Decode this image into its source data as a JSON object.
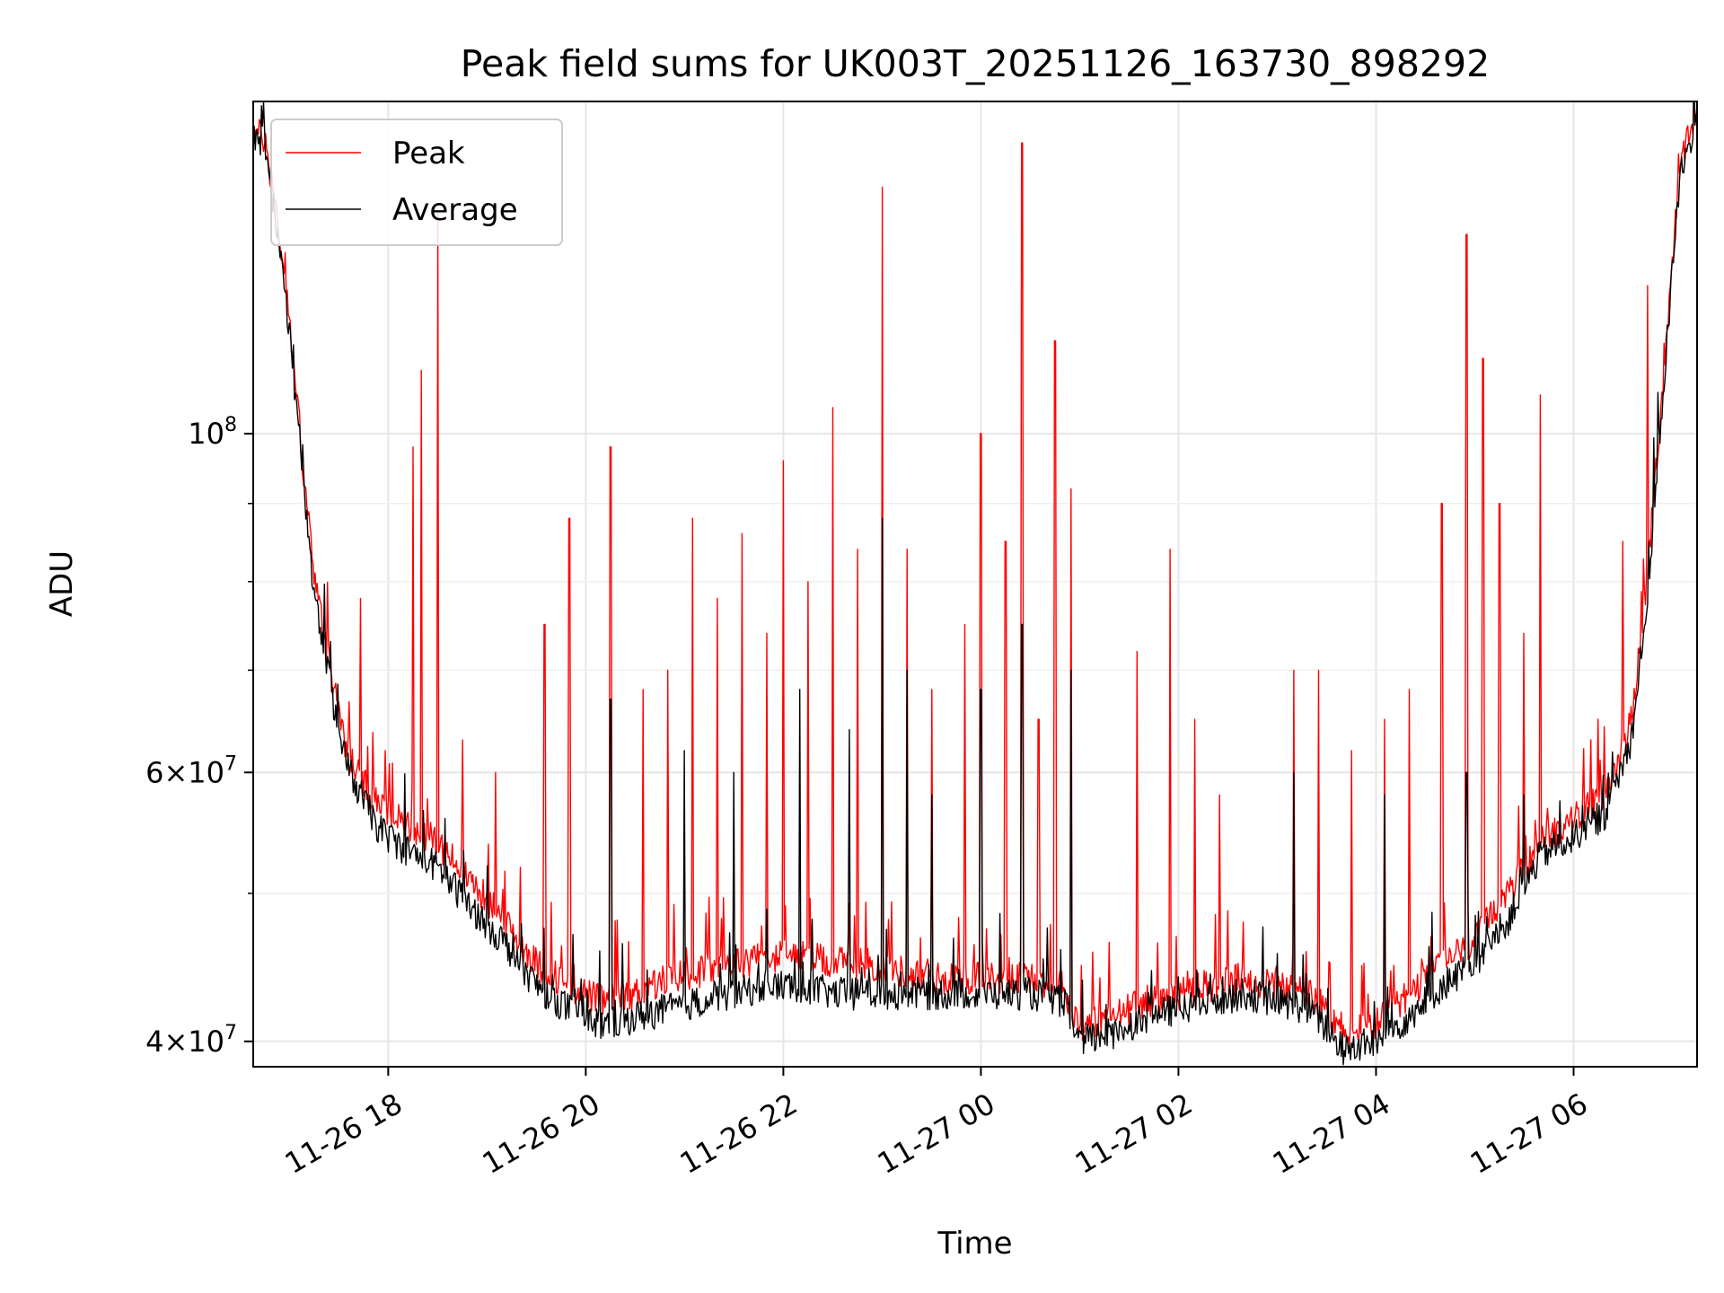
{
  "chart_data": {
    "type": "line",
    "title": "Peak field sums for UK003T_20251126_163730_898292",
    "xlabel": "Time",
    "ylabel": "ADU",
    "y_scale": "log",
    "ylim": [
      38500000,
      165000000
    ],
    "xlim": [
      "2025-11-26 16:38",
      "2025-11-27 07:15"
    ],
    "grid": true,
    "legend_position": "upper-left",
    "x_ticks": [
      {
        "label": "11-26 18",
        "value": "2025-11-26 18:00"
      },
      {
        "label": "11-26 20",
        "value": "2025-11-26 20:00"
      },
      {
        "label": "11-26 22",
        "value": "2025-11-26 22:00"
      },
      {
        "label": "11-27 00",
        "value": "2025-11-27 00:00"
      },
      {
        "label": "11-27 02",
        "value": "2025-11-27 02:00"
      },
      {
        "label": "11-27 04",
        "value": "2025-11-27 04:00"
      },
      {
        "label": "11-27 06",
        "value": "2025-11-27 06:00"
      }
    ],
    "y_ticks": [
      {
        "base": "4",
        "exp": "7",
        "value": 40000000
      },
      {
        "base": "6",
        "exp": "7",
        "value": 60000000
      },
      {
        "base": "10",
        "exp": "8",
        "value": 100000000
      }
    ],
    "series": [
      {
        "name": "Peak",
        "color": "#ff0000",
        "points": [
          [
            "2025-11-26 16:38",
            158000000
          ],
          [
            "2025-11-26 16:45",
            156000000
          ],
          [
            "2025-11-26 16:52",
            140000000
          ],
          [
            "2025-11-26 17:00",
            118000000
          ],
          [
            "2025-11-26 17:08",
            96000000
          ],
          [
            "2025-11-26 17:15",
            80000000
          ],
          [
            "2025-11-26 17:25",
            70000000
          ],
          [
            "2025-11-26 17:35",
            62000000
          ],
          [
            "2025-11-26 17:45",
            59000000
          ],
          [
            "2025-11-26 17:55",
            57000000
          ],
          [
            "2025-11-26 18:10",
            55500000
          ],
          [
            "2025-11-26 18:30",
            54000000
          ],
          [
            "2025-11-26 18:50",
            51000000
          ],
          [
            "2025-11-26 19:10",
            48000000
          ],
          [
            "2025-11-26 19:30",
            45000000
          ],
          [
            "2025-11-26 19:50",
            43500000
          ],
          [
            "2025-11-26 20:10",
            42500000
          ],
          [
            "2025-11-26 20:30",
            43000000
          ],
          [
            "2025-11-26 20:50",
            44000000
          ],
          [
            "2025-11-26 21:10",
            44500000
          ],
          [
            "2025-11-26 21:30",
            45000000
          ],
          [
            "2025-11-26 21:50",
            45500000
          ],
          [
            "2025-11-26 22:10",
            45500000
          ],
          [
            "2025-11-26 22:30",
            45000000
          ],
          [
            "2025-11-26 22:50",
            45000000
          ],
          [
            "2025-11-26 23:10",
            44500000
          ],
          [
            "2025-11-26 23:30",
            44000000
          ],
          [
            "2025-11-26 23:50",
            44000000
          ],
          [
            "2025-11-27 00:10",
            44000000
          ],
          [
            "2025-11-27 00:30",
            44000000
          ],
          [
            "2025-11-27 00:50",
            43500000
          ],
          [
            "2025-11-27 01:00",
            41000000
          ],
          [
            "2025-11-27 01:20",
            41500000
          ],
          [
            "2025-11-27 01:40",
            42500000
          ],
          [
            "2025-11-27 02:00",
            43000000
          ],
          [
            "2025-11-27 02:20",
            43500000
          ],
          [
            "2025-11-27 02:40",
            44000000
          ],
          [
            "2025-11-27 03:00",
            43500000
          ],
          [
            "2025-11-27 03:20",
            43000000
          ],
          [
            "2025-11-27 03:40",
            40500000
          ],
          [
            "2025-11-27 04:00",
            41000000
          ],
          [
            "2025-11-27 04:20",
            43000000
          ],
          [
            "2025-11-27 04:40",
            45000000
          ],
          [
            "2025-11-27 05:00",
            46500000
          ],
          [
            "2025-11-27 05:20",
            50000000
          ],
          [
            "2025-11-27 05:40",
            54000000
          ],
          [
            "2025-11-27 06:00",
            56000000
          ],
          [
            "2025-11-27 06:20",
            58000000
          ],
          [
            "2025-11-27 06:35",
            65000000
          ],
          [
            "2025-11-27 06:45",
            80000000
          ],
          [
            "2025-11-27 06:55",
            110000000
          ],
          [
            "2025-11-27 07:05",
            150000000
          ],
          [
            "2025-11-27 07:15",
            162000000
          ]
        ],
        "spikes": [
          [
            "2025-11-26 17:23",
            72000000
          ],
          [
            "2025-11-26 17:32",
            65000000
          ],
          [
            "2025-11-26 17:43",
            78000000
          ],
          [
            "2025-11-26 17:58",
            62000000
          ],
          [
            "2025-11-26 18:15",
            98000000
          ],
          [
            "2025-11-26 18:20",
            110000000
          ],
          [
            "2025-11-26 18:30",
            140000000
          ],
          [
            "2025-11-26 18:45",
            63000000
          ],
          [
            "2025-11-26 19:05",
            60000000
          ],
          [
            "2025-11-26 19:20",
            52000000
          ],
          [
            "2025-11-26 19:35",
            75000000
          ],
          [
            "2025-11-26 19:50",
            88000000
          ],
          [
            "2025-11-26 20:15",
            98000000
          ],
          [
            "2025-11-26 20:35",
            68000000
          ],
          [
            "2025-11-26 20:50",
            70000000
          ],
          [
            "2025-11-26 21:05",
            88000000
          ],
          [
            "2025-11-26 21:20",
            78000000
          ],
          [
            "2025-11-26 21:35",
            86000000
          ],
          [
            "2025-11-26 21:50",
            74000000
          ],
          [
            "2025-11-26 22:00",
            96000000
          ],
          [
            "2025-11-26 22:15",
            80000000
          ],
          [
            "2025-11-26 22:30",
            104000000
          ],
          [
            "2025-11-26 22:45",
            84000000
          ],
          [
            "2025-11-26 23:00",
            145000000
          ],
          [
            "2025-11-26 23:15",
            84000000
          ],
          [
            "2025-11-26 23:30",
            68000000
          ],
          [
            "2025-11-26 23:50",
            75000000
          ],
          [
            "2025-11-27 00:00",
            100000000
          ],
          [
            "2025-11-27 00:15",
            85000000
          ],
          [
            "2025-11-27 00:25",
            155000000
          ],
          [
            "2025-11-27 00:35",
            65000000
          ],
          [
            "2025-11-27 00:45",
            115000000
          ],
          [
            "2025-11-27 00:55",
            92000000
          ],
          [
            "2025-11-27 01:35",
            72000000
          ],
          [
            "2025-11-27 01:55",
            84000000
          ],
          [
            "2025-11-27 02:10",
            65000000
          ],
          [
            "2025-11-27 02:25",
            58000000
          ],
          [
            "2025-11-27 03:10",
            70000000
          ],
          [
            "2025-11-27 03:25",
            70000000
          ],
          [
            "2025-11-27 03:45",
            62000000
          ],
          [
            "2025-11-27 04:05",
            65000000
          ],
          [
            "2025-11-27 04:20",
            68000000
          ],
          [
            "2025-11-27 04:40",
            90000000
          ],
          [
            "2025-11-27 04:55",
            135000000
          ],
          [
            "2025-11-27 05:05",
            112000000
          ],
          [
            "2025-11-27 05:15",
            90000000
          ],
          [
            "2025-11-27 05:30",
            74000000
          ],
          [
            "2025-11-27 05:40",
            106000000
          ],
          [
            "2025-11-27 06:15",
            65000000
          ],
          [
            "2025-11-27 06:30",
            85000000
          ],
          [
            "2025-11-27 06:45",
            125000000
          ]
        ]
      },
      {
        "name": "Average",
        "color": "#000000",
        "points": [
          [
            "2025-11-26 16:38",
            157000000
          ],
          [
            "2025-11-26 16:45",
            155000000
          ],
          [
            "2025-11-26 16:52",
            138000000
          ],
          [
            "2025-11-26 17:00",
            116000000
          ],
          [
            "2025-11-26 17:08",
            94000000
          ],
          [
            "2025-11-26 17:15",
            78000000
          ],
          [
            "2025-11-26 17:25",
            68000000
          ],
          [
            "2025-11-26 17:35",
            60500000
          ],
          [
            "2025-11-26 17:45",
            57500000
          ],
          [
            "2025-11-26 17:55",
            55000000
          ],
          [
            "2025-11-26 18:10",
            53500000
          ],
          [
            "2025-11-26 18:30",
            52000000
          ],
          [
            "2025-11-26 18:50",
            49000000
          ],
          [
            "2025-11-26 19:10",
            46500000
          ],
          [
            "2025-11-26 19:30",
            43500000
          ],
          [
            "2025-11-26 19:50",
            42000000
          ],
          [
            "2025-11-26 20:10",
            41000000
          ],
          [
            "2025-11-26 20:30",
            41500000
          ],
          [
            "2025-11-26 20:50",
            42000000
          ],
          [
            "2025-11-26 21:10",
            42500000
          ],
          [
            "2025-11-26 21:30",
            43000000
          ],
          [
            "2025-11-26 21:50",
            43500000
          ],
          [
            "2025-11-26 22:10",
            43500000
          ],
          [
            "2025-11-26 22:30",
            43000000
          ],
          [
            "2025-11-26 22:50",
            43000000
          ],
          [
            "2025-11-26 23:10",
            43000000
          ],
          [
            "2025-11-26 23:30",
            43000000
          ],
          [
            "2025-11-26 23:50",
            43000000
          ],
          [
            "2025-11-27 00:10",
            43000000
          ],
          [
            "2025-11-27 00:30",
            43000000
          ],
          [
            "2025-11-27 00:50",
            42500000
          ],
          [
            "2025-11-27 01:00",
            40000000
          ],
          [
            "2025-11-27 01:20",
            40500000
          ],
          [
            "2025-11-27 01:40",
            41500000
          ],
          [
            "2025-11-27 02:00",
            42000000
          ],
          [
            "2025-11-27 02:20",
            42500000
          ],
          [
            "2025-11-27 02:40",
            43000000
          ],
          [
            "2025-11-27 03:00",
            42500000
          ],
          [
            "2025-11-27 03:20",
            42000000
          ],
          [
            "2025-11-27 03:40",
            39500000
          ],
          [
            "2025-11-27 04:00",
            40000000
          ],
          [
            "2025-11-27 04:20",
            41500000
          ],
          [
            "2025-11-27 04:40",
            43500000
          ],
          [
            "2025-11-27 05:00",
            45000000
          ],
          [
            "2025-11-27 05:20",
            48000000
          ],
          [
            "2025-11-27 05:40",
            53000000
          ],
          [
            "2025-11-27 06:00",
            54500000
          ],
          [
            "2025-11-27 06:20",
            56500000
          ],
          [
            "2025-11-27 06:35",
            63000000
          ],
          [
            "2025-11-27 06:45",
            78000000
          ],
          [
            "2025-11-27 06:55",
            108000000
          ],
          [
            "2025-11-27 07:05",
            148000000
          ],
          [
            "2025-11-27 07:15",
            160000000
          ]
        ],
        "spikes": [
          [
            "2025-11-26 20:15",
            67000000
          ],
          [
            "2025-11-26 21:00",
            62000000
          ],
          [
            "2025-11-26 21:30",
            60000000
          ],
          [
            "2025-11-26 22:10",
            68000000
          ],
          [
            "2025-11-26 22:40",
            64000000
          ],
          [
            "2025-11-26 23:00",
            88000000
          ],
          [
            "2025-11-26 23:15",
            70000000
          ],
          [
            "2025-11-26 23:30",
            58000000
          ],
          [
            "2025-11-27 00:00",
            68000000
          ],
          [
            "2025-11-27 00:25",
            75000000
          ],
          [
            "2025-11-27 00:55",
            70000000
          ],
          [
            "2025-11-27 03:10",
            60000000
          ],
          [
            "2025-11-27 04:05",
            58000000
          ],
          [
            "2025-11-27 04:55",
            60000000
          ],
          [
            "2025-11-27 05:30",
            58000000
          ]
        ]
      }
    ]
  }
}
